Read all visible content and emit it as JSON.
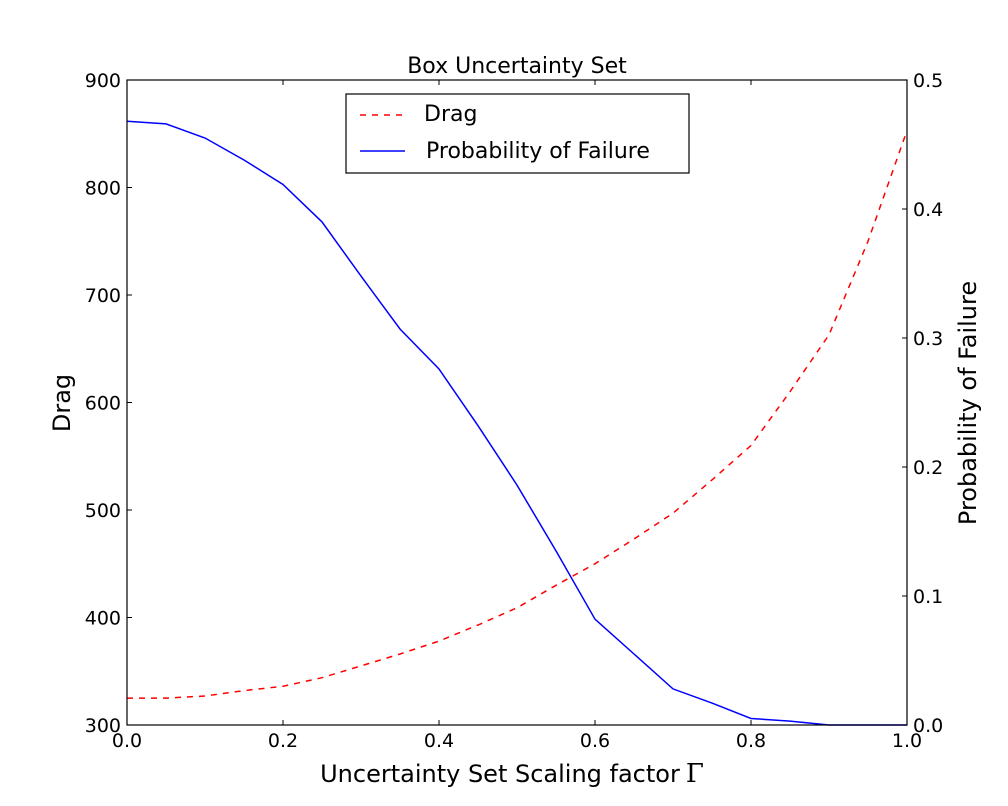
{
  "chart_data": {
    "type": "line",
    "title": "Box Uncertainty Set",
    "xlabel": "Uncertainty Set Scaling factor",
    "xlabel_symbol": "Γ",
    "ylabel_left": "Drag",
    "ylabel_right": "Probability of Failure",
    "xlim": [
      0.0,
      1.0
    ],
    "ylim_left": [
      300,
      900
    ],
    "ylim_right": [
      0.0,
      0.5
    ],
    "x_ticks": [
      "0.0",
      "0.2",
      "0.4",
      "0.6",
      "0.8",
      "1.0"
    ],
    "y_left_ticks": [
      "300",
      "400",
      "500",
      "600",
      "700",
      "800",
      "900"
    ],
    "y_right_ticks": [
      "0.0",
      "0.1",
      "0.2",
      "0.3",
      "0.4",
      "0.5"
    ],
    "grid": false,
    "legend_position": "upper-center",
    "series": [
      {
        "name": "Drag",
        "axis": "left",
        "color": "#ff0000",
        "style": "dashed",
        "x": [
          0.0,
          0.05,
          0.1,
          0.15,
          0.2,
          0.25,
          0.3,
          0.35,
          0.4,
          0.45,
          0.5,
          0.55,
          0.6,
          0.65,
          0.7,
          0.75,
          0.8,
          0.85,
          0.9,
          0.95,
          1.0
        ],
        "y": [
          325,
          325,
          327,
          332,
          336,
          344,
          355,
          366,
          378,
          393,
          409,
          430,
          450,
          473,
          497,
          528,
          560,
          610,
          663,
          750,
          853
        ]
      },
      {
        "name": "Probability of Failure",
        "axis": "right",
        "color": "#0000ff",
        "style": "solid",
        "x": [
          0.0,
          0.05,
          0.1,
          0.15,
          0.2,
          0.25,
          0.3,
          0.35,
          0.4,
          0.45,
          0.5,
          0.55,
          0.6,
          0.65,
          0.7,
          0.75,
          0.8,
          0.85,
          0.9,
          0.95,
          1.0
        ],
        "y": [
          0.468,
          0.466,
          0.455,
          0.438,
          0.419,
          0.39,
          0.348,
          0.307,
          0.276,
          0.232,
          0.186,
          0.135,
          0.082,
          0.055,
          0.028,
          0.017,
          0.005,
          0.003,
          0.0,
          0.0,
          0.0
        ]
      }
    ]
  }
}
